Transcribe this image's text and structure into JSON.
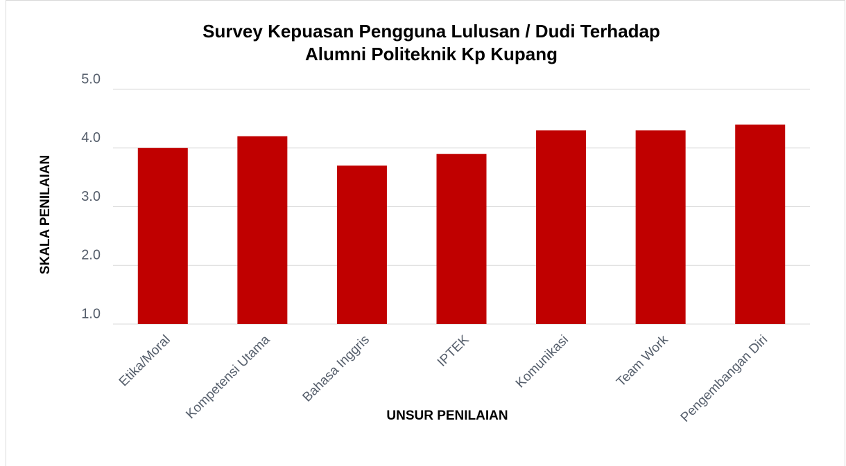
{
  "chart_data": {
    "type": "bar",
    "title": [
      "Survey Kepuasan Pengguna Lulusan / Dudi Terhadap",
      "Alumni Politeknik Kp Kupang"
    ],
    "x_label": "UNSUR PENILAIAN",
    "y_label": "SKALA PENILAIAN",
    "categories": [
      "Etika/Moral",
      "Kompetensi Utama",
      "Bahasa Inggris",
      "IPTEK",
      "Komunikasi",
      "Team Work",
      "Pengembangan Diri"
    ],
    "values": [
      4.0,
      4.2,
      3.7,
      3.9,
      4.3,
      4.3,
      4.4
    ],
    "color": "#c00000",
    "ylim": [
      1,
      5
    ],
    "yticks": [
      {
        "value": 1,
        "label": "1.0"
      },
      {
        "value": 2,
        "label": "2.0"
      },
      {
        "value": 3,
        "label": "3.0"
      },
      {
        "value": 4,
        "label": "4.0"
      },
      {
        "value": 5,
        "label": "5.0"
      }
    ],
    "grid": true
  }
}
